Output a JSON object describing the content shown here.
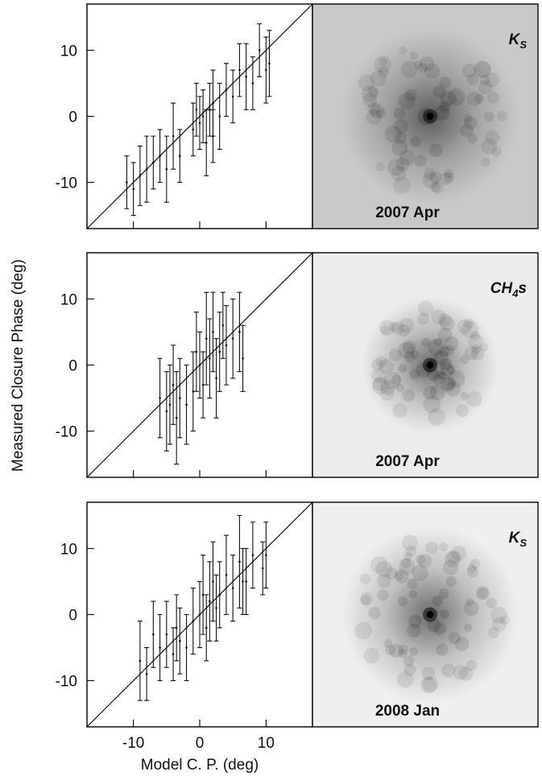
{
  "figure": {
    "xlabel": "Model C. P. (deg)",
    "ylabel": "Measured Closure Phase (deg)"
  },
  "chart_data": [
    {
      "type": "errorbar",
      "xlim": [
        -17,
        17
      ],
      "ylim": [
        -17,
        17
      ],
      "xticks": [
        -10,
        0,
        10
      ],
      "yticks": [
        -10,
        0,
        10
      ],
      "band": {
        "text": "K",
        "sub": "S"
      },
      "date": "2007 Apr",
      "background": "#c9c9c9",
      "x": [
        -11,
        -10,
        -9,
        -8,
        -7,
        -6,
        -5,
        -4,
        -3,
        -1,
        -0.5,
        0,
        0.5,
        1,
        1.5,
        2,
        2,
        3,
        4,
        5,
        6,
        7,
        8,
        9,
        10,
        10.5
      ],
      "values": [
        -10,
        -11,
        -9,
        -8,
        -7,
        -6,
        -8,
        -3,
        -6,
        -2,
        1,
        -1,
        0,
        -4,
        1,
        -3,
        2,
        0,
        4,
        3,
        7,
        6,
        5,
        10,
        7,
        8
      ],
      "errors": [
        4,
        4,
        4.5,
        5,
        4,
        4,
        5,
        5,
        4,
        4,
        4,
        4,
        4,
        5,
        4,
        4,
        5,
        5,
        4,
        4,
        4,
        5,
        4,
        4,
        5,
        5
      ]
    },
    {
      "type": "errorbar",
      "xlim": [
        -17,
        17
      ],
      "ylim": [
        -17,
        17
      ],
      "xticks": [
        -10,
        0,
        10
      ],
      "yticks": [
        -10,
        0,
        10
      ],
      "band": {
        "text": "CH",
        "sub": "4",
        "tail": "s"
      },
      "date": "2007 Apr",
      "background": "#ececec",
      "x": [
        -6,
        -5,
        -4.5,
        -4,
        -3.5,
        -3,
        -2,
        -1,
        -0.5,
        0,
        0.5,
        1,
        1.5,
        2,
        2.5,
        3,
        3.5,
        4,
        5,
        6,
        6.5
      ],
      "values": [
        -5,
        -7,
        -6,
        -3,
        -8,
        -5,
        -6,
        -4,
        2,
        0,
        -3,
        4,
        1,
        5,
        -2,
        2,
        6,
        3,
        4,
        5,
        1
      ],
      "errors": [
        6,
        6,
        6,
        6,
        7,
        6,
        6,
        6,
        6,
        5,
        5,
        7,
        6,
        6,
        6,
        6,
        5,
        6,
        6,
        6,
        5
      ]
    },
    {
      "type": "errorbar",
      "xlim": [
        -17,
        17
      ],
      "ylim": [
        -17,
        17
      ],
      "xticks": [
        -10,
        0,
        10
      ],
      "yticks": [
        -10,
        0,
        10
      ],
      "band": {
        "text": "K",
        "sub": "S"
      },
      "date": "2008 Jan",
      "background": "#efefef",
      "x": [
        -9,
        -8,
        -7,
        -6,
        -5,
        -4,
        -3.5,
        -3,
        -2,
        -1,
        0,
        0.5,
        1,
        1.5,
        2,
        2.5,
        3,
        4,
        5,
        6,
        6.5,
        7,
        8,
        9.5,
        10
      ],
      "values": [
        -7,
        -9,
        -3,
        -5,
        -3,
        -6,
        -2,
        -4,
        -5,
        -1,
        0,
        3,
        -2,
        2,
        5,
        1,
        3,
        6,
        4,
        8,
        5,
        5,
        9,
        7,
        9
      ],
      "errors": [
        6,
        4,
        5,
        5,
        5,
        4,
        5,
        5,
        5,
        5,
        5,
        6,
        5,
        6,
        6,
        5,
        5,
        6,
        5,
        7,
        5,
        5,
        5,
        4,
        5
      ]
    }
  ]
}
